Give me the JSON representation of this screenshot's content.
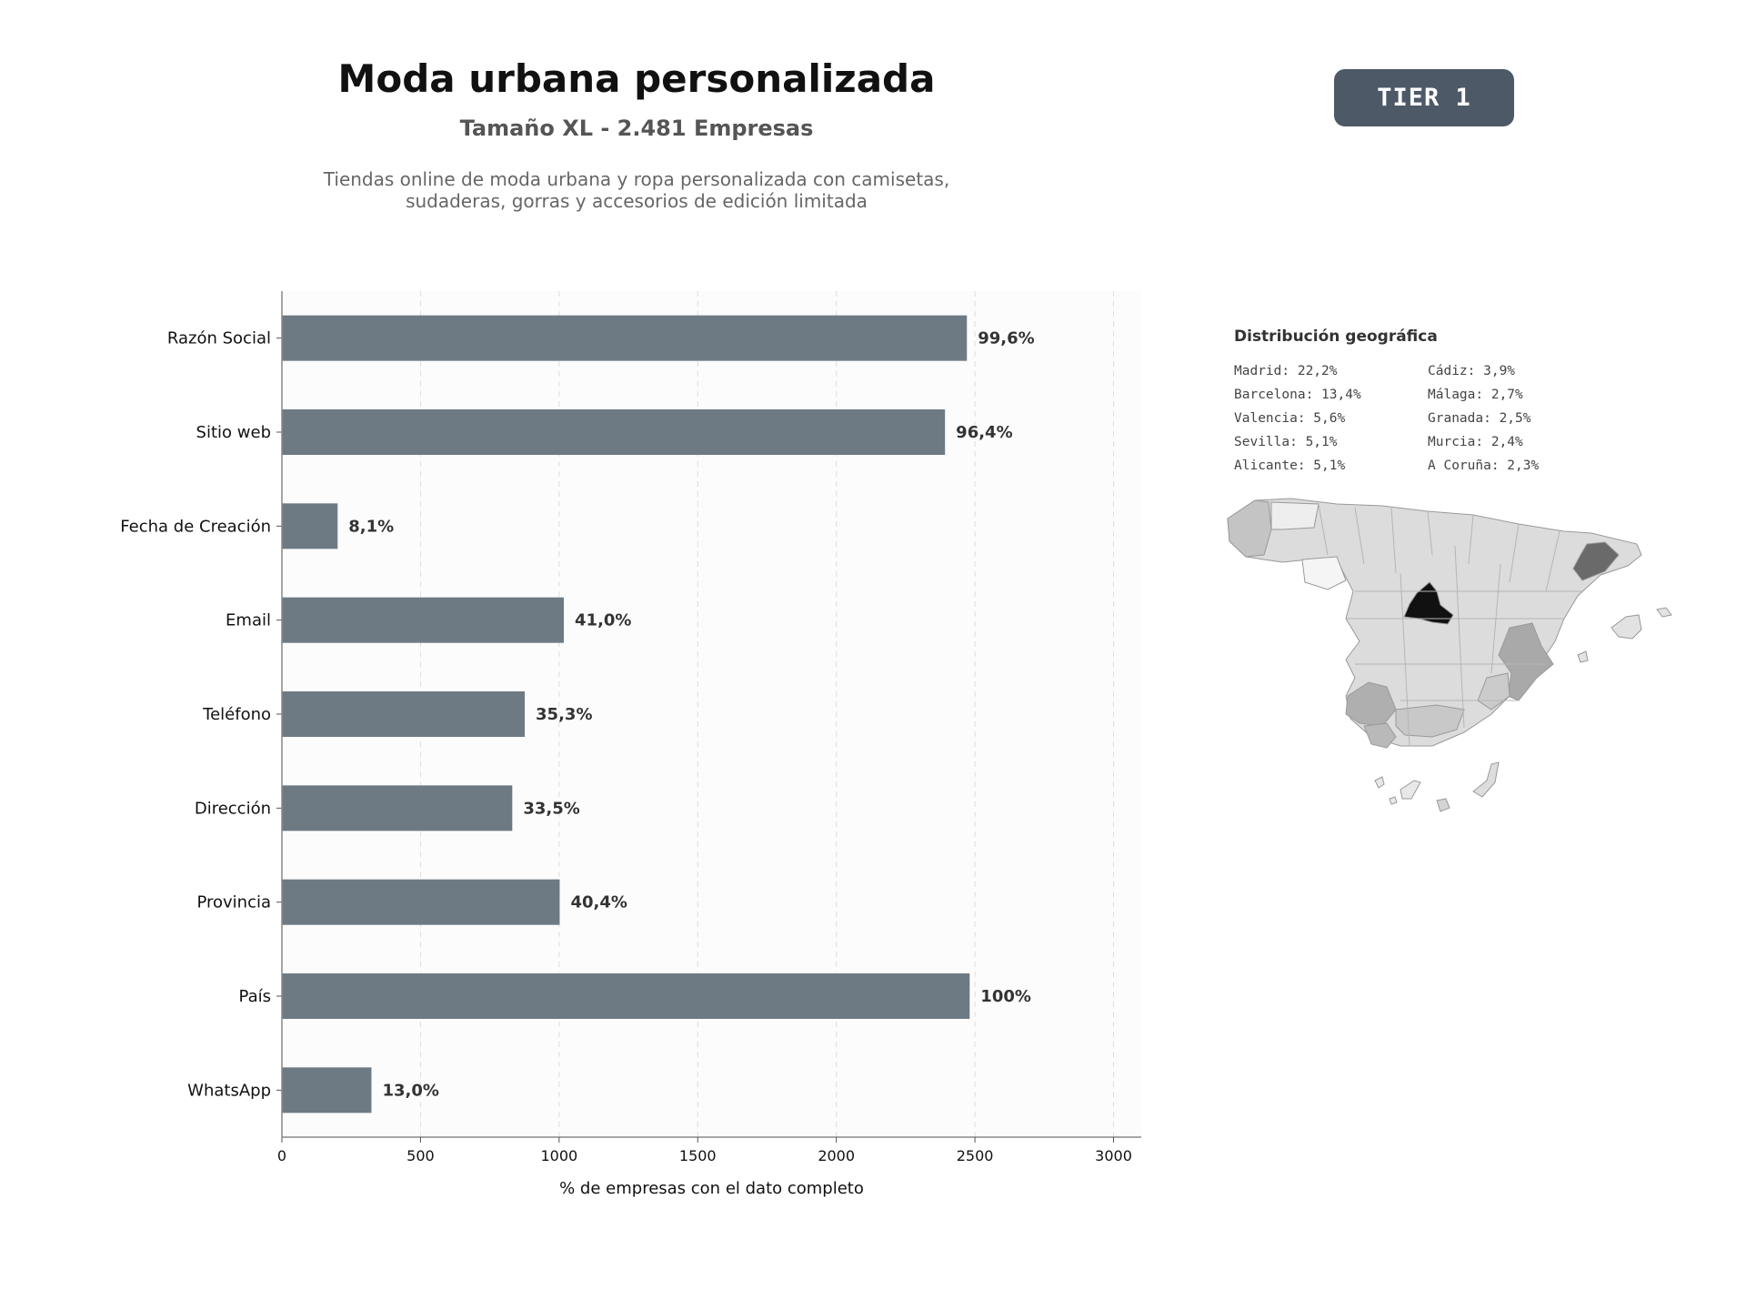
{
  "header": {
    "title": "Moda urbana personalizada",
    "subtitle": "Tamaño XL - 2.481 Empresas",
    "description_line1": "Tiendas online de moda urbana y ropa personalizada con camisetas,",
    "description_line2": "sudaderas, gorras y accesorios de edición limitada",
    "tier_badge": "TIER 1"
  },
  "chart_data": {
    "type": "bar",
    "orientation": "horizontal",
    "categories": [
      "Razón Social",
      "Sitio web",
      "Fecha de Creación",
      "Email",
      "Teléfono",
      "Dirección",
      "Provincia",
      "País",
      "WhatsApp"
    ],
    "values": [
      2471,
      2392,
      201,
      1017,
      876,
      831,
      1002,
      2481,
      323
    ],
    "value_labels": [
      "99,6%",
      "96,4%",
      "8,1%",
      "41,0%",
      "35,3%",
      "33,5%",
      "40,4%",
      "100%",
      "13,0%"
    ],
    "xlabel": "% de empresas con el dato completo",
    "xlim": [
      0,
      3100
    ],
    "xticks": [
      0,
      500,
      1000,
      1500,
      2000,
      2500,
      3000
    ],
    "grid": "vertical dashed",
    "bar_color": "#6e7a83"
  },
  "geo": {
    "title": "Distribución geográfica",
    "items": [
      "Madrid: 22,2%",
      "Cádiz: 3,9%",
      "Barcelona: 13,4%",
      "Málaga: 2,7%",
      "Valencia: 5,6%",
      "Granada: 2,5%",
      "Sevilla: 5,1%",
      "Murcia: 2,4%",
      "Alicante: 5,1%",
      "A Coruña: 2,3%"
    ]
  }
}
